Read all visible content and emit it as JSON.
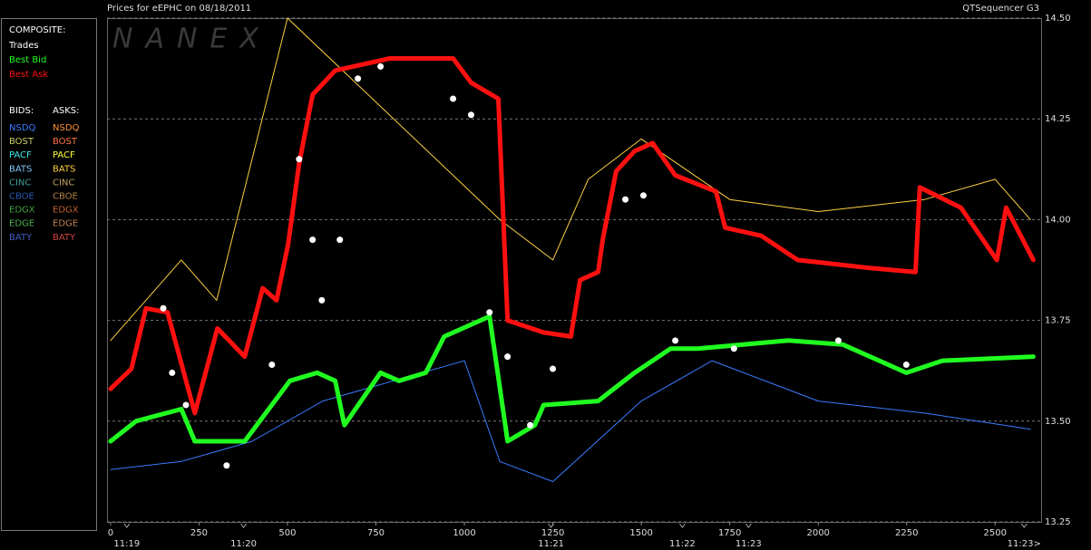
{
  "header": {
    "title": "Prices for  eEPHC  on  08/18/2011",
    "app": "QTSequencer G3"
  },
  "legend": {
    "composite_label": "COMPOSITE:",
    "bids_label": "BIDS:",
    "asks_label": "ASKS:",
    "exchanges": [
      {
        "name": "NSDQ",
        "bid_color": "#3a7bff",
        "ask_color": "#ff9030"
      },
      {
        "name": "BOST",
        "bid_color": "#c8d060",
        "ask_color": "#ff7040"
      },
      {
        "name": "PACF",
        "bid_color": "#40e8e8",
        "ask_color": "#ffff40"
      },
      {
        "name": "BATS",
        "bid_color": "#80c8ff",
        "ask_color": "#ffd040"
      },
      {
        "name": "CINC",
        "bid_color": "#40a0a0",
        "ask_color": "#c0a060"
      },
      {
        "name": "CBOE",
        "bid_color": "#2858b0",
        "ask_color": "#b08040"
      },
      {
        "name": "EDGX",
        "bid_color": "#40a040",
        "ask_color": "#c06030"
      },
      {
        "name": "EDGE",
        "bid_color": "#50b050",
        "ask_color": "#c08050"
      },
      {
        "name": "BATY",
        "bid_color": "#4060c0",
        "ask_color": "#d04040"
      }
    ]
  },
  "chart_data": {
    "type": "line",
    "watermark": "NANEX",
    "xlim": [
      -10,
      2630
    ],
    "ylim": [
      13.25,
      14.5
    ],
    "xticks": [
      0,
      250,
      500,
      750,
      1000,
      1250,
      1500,
      1750,
      2000,
      2250,
      2500
    ],
    "yticks": [
      13.25,
      {
        "value": 13.5,
        "label": "13.50"
      },
      13.75,
      {
        "value": 14.0,
        "label": "14.00"
      },
      14.25,
      {
        "value": 14.5,
        "label": "14.50"
      }
    ],
    "time_ticks": [
      {
        "value": 46,
        "label": "11:19"
      },
      {
        "value": 376,
        "label": "11:20"
      },
      {
        "value": 1245,
        "label": "11:21"
      },
      {
        "value": 1616,
        "label": "11:22"
      },
      {
        "value": 1803,
        "label": "11:23"
      },
      {
        "value": 2582,
        "label": "11:23>"
      }
    ],
    "grid": true,
    "series": [
      {
        "name": "BATS",
        "side": "ask",
        "type": "line",
        "color": "#ffd040",
        "x": [
          0,
          100,
          200,
          300,
          500,
          1100,
          1250,
          1350,
          1500,
          1750,
          2000,
          2300,
          2500,
          2600
        ],
        "values": [
          13.7,
          13.8,
          13.9,
          13.8,
          14.5,
          14.0,
          13.9,
          14.1,
          14.2,
          14.05,
          14.02,
          14.05,
          14.1,
          14.0
        ]
      },
      {
        "name": "NSDQ",
        "side": "bid",
        "type": "line",
        "color": "#3a7bff",
        "x": [
          0,
          200,
          400,
          600,
          800,
          1000,
          1100,
          1250,
          1500,
          1700,
          2000,
          2300,
          2600
        ],
        "values": [
          13.38,
          13.4,
          13.45,
          13.55,
          13.6,
          13.65,
          13.4,
          13.35,
          13.55,
          13.65,
          13.55,
          13.52,
          13.48
        ]
      },
      {
        "name": "Best Ask",
        "type": "line",
        "color": "#ff1010",
        "x": [
          0,
          59,
          100,
          161,
          238,
          302,
          379,
          430,
          469,
          502,
          533,
          571,
          635,
          789,
          968,
          1019,
          1096,
          1122,
          1224,
          1301,
          1327,
          1378,
          1391,
          1429,
          1481,
          1532,
          1596,
          1711,
          1737,
          1839,
          1942,
          2146,
          2275,
          2287,
          2403,
          2505,
          2531,
          2608
        ],
        "values": [
          13.58,
          13.63,
          13.78,
          13.77,
          13.52,
          13.73,
          13.66,
          13.83,
          13.8,
          13.94,
          14.14,
          14.31,
          14.37,
          14.4,
          14.4,
          14.34,
          14.3,
          13.75,
          13.72,
          13.71,
          13.85,
          13.87,
          13.95,
          14.12,
          14.17,
          14.19,
          14.11,
          14.07,
          13.98,
          13.96,
          13.9,
          13.88,
          13.87,
          14.08,
          14.03,
          13.9,
          14.03,
          13.9
        ]
      },
      {
        "name": "Best Bid",
        "type": "line",
        "color": "#20ff20",
        "x": [
          0,
          72,
          200,
          238,
          379,
          507,
          584,
          635,
          661,
          763,
          815,
          891,
          943,
          1071,
          1122,
          1199,
          1224,
          1378,
          1481,
          1583,
          1660,
          1916,
          2070,
          2249,
          2351,
          2608
        ],
        "values": [
          13.45,
          13.5,
          13.53,
          13.45,
          13.45,
          13.6,
          13.62,
          13.6,
          13.49,
          13.62,
          13.6,
          13.62,
          13.71,
          13.76,
          13.45,
          13.49,
          13.54,
          13.55,
          13.62,
          13.68,
          13.68,
          13.7,
          13.69,
          13.62,
          13.65,
          13.66
        ]
      },
      {
        "name": "Trades",
        "type": "scatter",
        "color": "#ffffff",
        "x": [
          149,
          174,
          213,
          328,
          456,
          533,
          571,
          597,
          648,
          699,
          763,
          968,
          1019,
          1071,
          1122,
          1186,
          1250,
          1455,
          1506,
          1596,
          1762,
          2057,
          2249
        ],
        "values": [
          13.78,
          13.62,
          13.54,
          13.39,
          13.64,
          14.15,
          13.95,
          13.8,
          13.95,
          14.35,
          14.38,
          14.3,
          14.26,
          13.77,
          13.66,
          13.49,
          13.63,
          14.05,
          14.06,
          13.7,
          13.68,
          13.7,
          13.64
        ]
      }
    ]
  }
}
